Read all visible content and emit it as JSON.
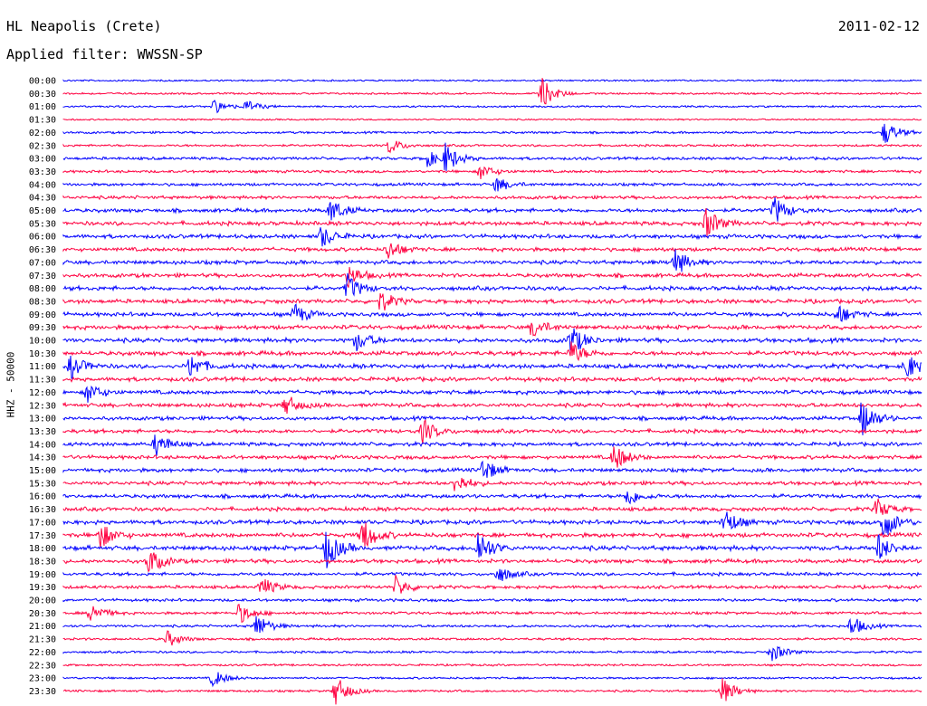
{
  "header": {
    "station": "HL Neapolis (Crete)",
    "date": "2011-02-12",
    "filter": "Applied filter: WWSSN-SP"
  },
  "axis": {
    "ylabel": "HHZ - 50000"
  },
  "colors": {
    "odd_trace": "#0000ff",
    "even_trace": "#ff0040",
    "text": "#000000",
    "background": "#ffffff"
  },
  "chart_data": {
    "type": "line",
    "title": "HL Neapolis (Crete)",
    "subtitle": "Applied filter: WWSSN-SP",
    "ylabel": "HHZ - 50000",
    "rows": [
      "00:00",
      "00:30",
      "01:00",
      "01:30",
      "02:00",
      "02:30",
      "03:00",
      "03:30",
      "04:00",
      "04:30",
      "05:00",
      "05:30",
      "06:00",
      "06:30",
      "07:00",
      "07:30",
      "08:00",
      "08:30",
      "09:00",
      "09:30",
      "10:00",
      "10:30",
      "11:00",
      "11:30",
      "12:00",
      "12:30",
      "13:00",
      "13:30",
      "14:00",
      "14:30",
      "15:00",
      "15:30",
      "16:00",
      "16:30",
      "17:00",
      "17:30",
      "18:00",
      "18:30",
      "19:00",
      "19:30",
      "20:00",
      "20:30",
      "21:00",
      "21:30",
      "22:00",
      "22:30",
      "23:00",
      "23:30"
    ],
    "row_colors": [
      "blue",
      "red"
    ],
    "activity": [
      0.15,
      0.2,
      0.2,
      0.1,
      0.3,
      0.3,
      0.5,
      0.45,
      0.5,
      0.6,
      0.75,
      0.8,
      0.8,
      0.75,
      0.8,
      0.8,
      0.85,
      0.85,
      0.8,
      0.85,
      0.9,
      0.9,
      0.9,
      0.85,
      0.8,
      0.8,
      0.75,
      0.75,
      0.75,
      0.75,
      0.75,
      0.75,
      0.75,
      0.75,
      0.85,
      0.9,
      0.95,
      0.8,
      0.6,
      0.6,
      0.5,
      0.45,
      0.4,
      0.35,
      0.3,
      0.25,
      0.25,
      0.3
    ],
    "events": [
      {
        "row": 1,
        "x": 598,
        "amp": 18
      },
      {
        "row": 2,
        "x": 236,
        "amp": 8
      },
      {
        "row": 2,
        "x": 272,
        "amp": 7
      },
      {
        "row": 4,
        "x": 977,
        "amp": 14
      },
      {
        "row": 5,
        "x": 430,
        "amp": 9
      },
      {
        "row": 6,
        "x": 470,
        "amp": 11
      },
      {
        "row": 6,
        "x": 492,
        "amp": 16
      },
      {
        "row": 7,
        "x": 530,
        "amp": 9
      },
      {
        "row": 8,
        "x": 548,
        "amp": 9
      },
      {
        "row": 10,
        "x": 365,
        "amp": 14
      },
      {
        "row": 10,
        "x": 855,
        "amp": 16
      },
      {
        "row": 11,
        "x": 780,
        "amp": 18
      },
      {
        "row": 12,
        "x": 355,
        "amp": 13
      },
      {
        "row": 13,
        "x": 428,
        "amp": 12
      },
      {
        "row": 14,
        "x": 745,
        "amp": 16
      },
      {
        "row": 15,
        "x": 383,
        "amp": 14
      },
      {
        "row": 16,
        "x": 383,
        "amp": 16
      },
      {
        "row": 17,
        "x": 420,
        "amp": 12
      },
      {
        "row": 18,
        "x": 325,
        "amp": 12
      },
      {
        "row": 18,
        "x": 925,
        "amp": 12
      },
      {
        "row": 19,
        "x": 588,
        "amp": 12
      },
      {
        "row": 20,
        "x": 630,
        "amp": 18
      },
      {
        "row": 20,
        "x": 393,
        "amp": 12
      },
      {
        "row": 21,
        "x": 630,
        "amp": 14
      },
      {
        "row": 22,
        "x": 78,
        "amp": 14
      },
      {
        "row": 22,
        "x": 210,
        "amp": 14
      },
      {
        "row": 22,
        "x": 1000,
        "amp": 16
      },
      {
        "row": 24,
        "x": 96,
        "amp": 12
      },
      {
        "row": 25,
        "x": 315,
        "amp": 12
      },
      {
        "row": 26,
        "x": 952,
        "amp": 22
      },
      {
        "row": 27,
        "x": 467,
        "amp": 14
      },
      {
        "row": 28,
        "x": 172,
        "amp": 14
      },
      {
        "row": 29,
        "x": 678,
        "amp": 16
      },
      {
        "row": 30,
        "x": 533,
        "amp": 14
      },
      {
        "row": 31,
        "x": 503,
        "amp": 12
      },
      {
        "row": 32,
        "x": 692,
        "amp": 12
      },
      {
        "row": 33,
        "x": 968,
        "amp": 12
      },
      {
        "row": 34,
        "x": 975,
        "amp": 22
      },
      {
        "row": 34,
        "x": 800,
        "amp": 16
      },
      {
        "row": 35,
        "x": 400,
        "amp": 20
      },
      {
        "row": 35,
        "x": 110,
        "amp": 16
      },
      {
        "row": 36,
        "x": 360,
        "amp": 24
      },
      {
        "row": 36,
        "x": 528,
        "amp": 22
      },
      {
        "row": 36,
        "x": 970,
        "amp": 16
      },
      {
        "row": 37,
        "x": 164,
        "amp": 16
      },
      {
        "row": 38,
        "x": 550,
        "amp": 10
      },
      {
        "row": 39,
        "x": 288,
        "amp": 12
      },
      {
        "row": 39,
        "x": 437,
        "amp": 12
      },
      {
        "row": 41,
        "x": 100,
        "amp": 12
      },
      {
        "row": 41,
        "x": 264,
        "amp": 12
      },
      {
        "row": 42,
        "x": 283,
        "amp": 14
      },
      {
        "row": 42,
        "x": 940,
        "amp": 12
      },
      {
        "row": 43,
        "x": 185,
        "amp": 9
      },
      {
        "row": 44,
        "x": 852,
        "amp": 11
      },
      {
        "row": 46,
        "x": 235,
        "amp": 10
      },
      {
        "row": 47,
        "x": 370,
        "amp": 18
      },
      {
        "row": 47,
        "x": 797,
        "amp": 16
      }
    ]
  }
}
